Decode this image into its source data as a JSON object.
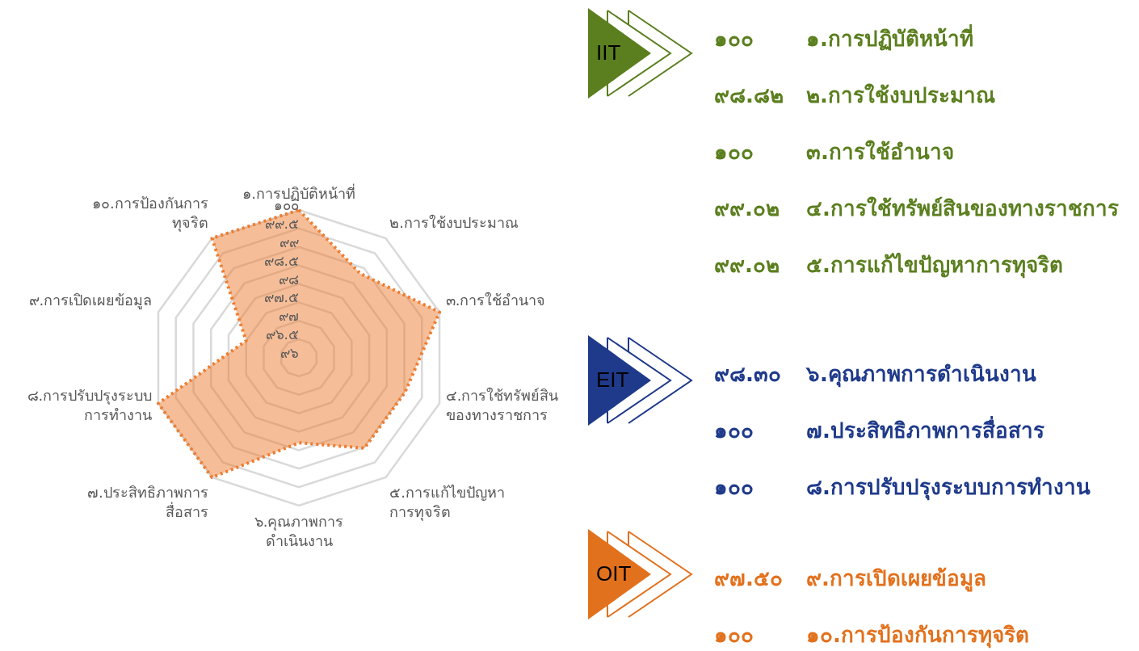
{
  "chart_data": [
    {
      "type": "radar",
      "categories": [
        "๑.การปฏิบัติหน้าที่",
        "๒.การใช้งบประมาณ",
        "๓.การใช้อำนาจ",
        "๔.การใช้ทรัพย์สิน\nของทางราชการ",
        "๕.การแก้ไขปัญหา\nการทุจริต",
        "๖.คุณภาพการ\nดำเนินงาน",
        "๗.ประสิทธิภาพการ\nสื่อสาร",
        "๘.การปรับปรุงระบบ\nการทำงาน",
        "๙.การเปิดเผยข้อมูล",
        "๑๐.การป้องกันการ\nทุจริต"
      ],
      "series": [
        {
          "color": "#ed7d31",
          "values": [
            100,
            98.82,
            100,
            99.02,
            99.02,
            98.3,
            100,
            100,
            97.5,
            100
          ]
        }
      ],
      "ylim": [
        96,
        100
      ],
      "yticks": [
        {
          "value": 96,
          "label": "๙๖"
        },
        {
          "value": 96.5,
          "label": "๙๖.๕"
        },
        {
          "value": 97,
          "label": "๙๗"
        },
        {
          "value": 97.5,
          "label": "๙๗.๕"
        },
        {
          "value": 98,
          "label": "๙๘"
        },
        {
          "value": 98.5,
          "label": "๙๘.๕"
        },
        {
          "value": 99,
          "label": "๙๙"
        },
        {
          "value": 99.5,
          "label": "๙๙.๕"
        },
        {
          "value": 100,
          "label": "๑๐๐"
        }
      ],
      "grid": true,
      "line_style": "dotted"
    },
    {
      "type": "other",
      "title": "IIT",
      "color": "#5b7f1f",
      "categories": [
        "๑.การปฏิบัติหน้าที่",
        "๒.การใช้งบประมาณ",
        "๓.การใช้อำนาจ",
        "๔.การใช้ทรัพย์สินของทางราชการ",
        "๕.การแก้ไขปัญหาการทุจริต"
      ],
      "value_labels": [
        "๑๐๐",
        "๙๘.๘๒",
        "๑๐๐",
        "๙๙.๐๒",
        "๙๙.๐๒"
      ]
    },
    {
      "type": "other",
      "title": "EIT",
      "color": "#1f3a8a",
      "categories": [
        "๖.คุณภาพการดำเนินงาน",
        "๗.ประสิทธิภาพการสื่อสาร",
        "๘.การปรับปรุงระบบการทำงาน"
      ],
      "value_labels": [
        "๙๘.๓๐",
        "๑๐๐",
        "๑๐๐"
      ]
    },
    {
      "type": "other",
      "title": "OIT",
      "color": "#e2711d",
      "categories": [
        "๙.การเปิดเผยข้อมูล",
        "๑๐.การป้องกันการทุจริต"
      ],
      "value_labels": [
        "๙๗.๕๐",
        "๑๐๐"
      ]
    }
  ]
}
